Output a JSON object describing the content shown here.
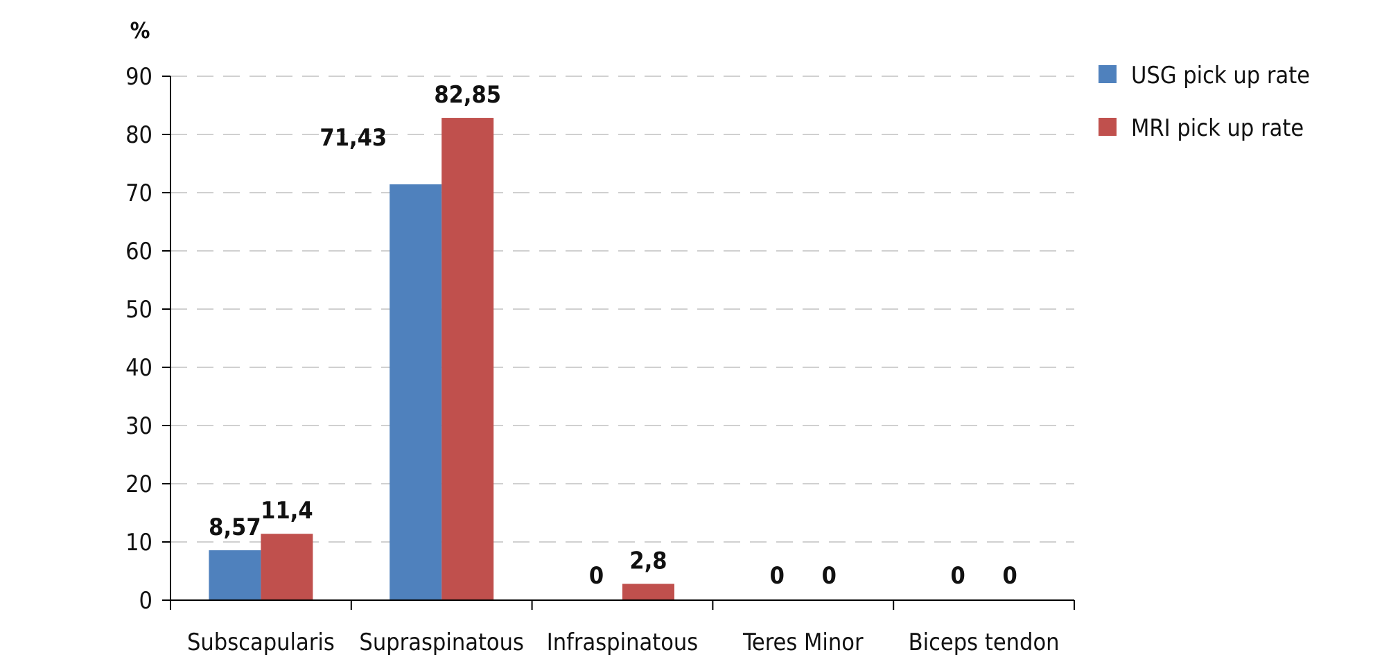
{
  "chart_data": {
    "type": "bar",
    "unit_label": "%",
    "categories": [
      "Subscapularis",
      "Supraspinatous",
      "Infraspinatous",
      "Teres Minor",
      "Biceps tendon"
    ],
    "series": [
      {
        "name": "USG pick up rate",
        "color": "#4F81BD",
        "values": [
          8.57,
          71.43,
          0,
          0,
          0
        ],
        "labels": [
          "8,57",
          "71,43",
          "0",
          "0",
          "0"
        ]
      },
      {
        "name": "MRI pick up rate",
        "color": "#C0504D",
        "values": [
          11.4,
          82.85,
          2.8,
          0,
          0
        ],
        "labels": [
          "11,4",
          "82,85",
          "2,8",
          "0",
          "0"
        ]
      }
    ],
    "ylim": [
      0,
      90
    ],
    "yticks": [
      0,
      10,
      20,
      30,
      40,
      50,
      60,
      70,
      80,
      90
    ],
    "grid": true,
    "legend_position": "top-right"
  }
}
